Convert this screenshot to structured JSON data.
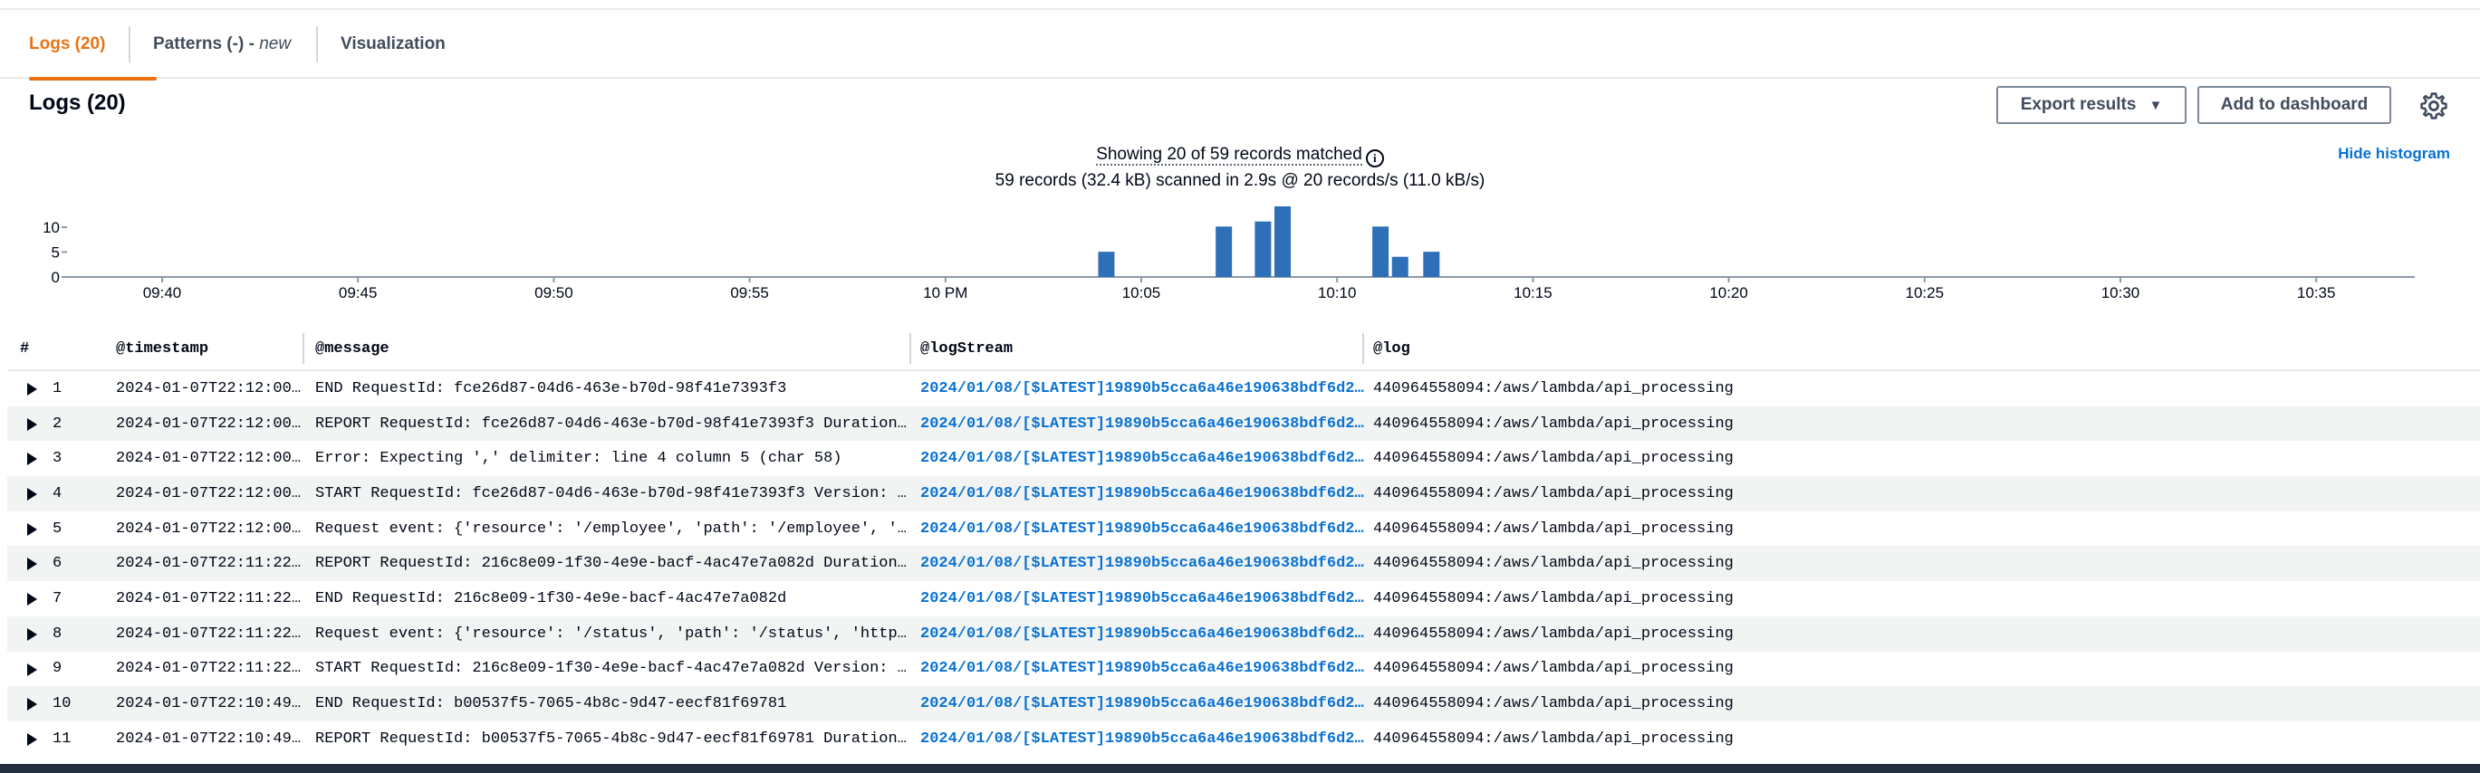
{
  "tabs": [
    {
      "label": "Logs (20)"
    },
    {
      "label": "Patterns (-) - ",
      "suffix": "new"
    },
    {
      "label": "Visualization"
    }
  ],
  "panel": {
    "title": "Logs (20)",
    "export_label": "Export results",
    "add_dashboard_label": "Add to dashboard"
  },
  "histogram": {
    "summary_line1": "Showing 20 of 59 records matched",
    "summary_line2": "59 records (32.4 kB) scanned in 2.9s @ 20 records/s (11.0 kB/s)",
    "hide_label": "Hide histogram"
  },
  "chart_data": {
    "type": "bar",
    "x_ticks": [
      "09:40",
      "09:45",
      "09:50",
      "09:55",
      "10 PM",
      "10:05",
      "10:10",
      "10:15",
      "10:20",
      "10:25",
      "10:30",
      "10:35"
    ],
    "y_ticks": [
      "0",
      "5",
      "10"
    ],
    "ylim": [
      0,
      14
    ],
    "bar_color": "#2f6fb7",
    "bars": [
      {
        "x_min": 23.9,
        "value": 5
      },
      {
        "x_min": 26.9,
        "value": 10
      },
      {
        "x_min": 27.9,
        "value": 11
      },
      {
        "x_min": 28.4,
        "value": 14
      },
      {
        "x_min": 30.9,
        "value": 10
      },
      {
        "x_min": 31.4,
        "value": 4
      },
      {
        "x_min": 32.2,
        "value": 5
      }
    ]
  },
  "table": {
    "headers": [
      "#",
      "@timestamp",
      "@message",
      "@logStream",
      "@log"
    ],
    "rows": [
      {
        "n": "1",
        "ts": "2024-01-07T22:12:00.…",
        "msg": "END RequestId: fce26d87-04d6-463e-b70d-98f41e7393f3",
        "stream": "2024/01/08/[$LATEST]19890b5cca6a46e190638bdf6d229…",
        "log": "440964558094:/aws/lambda/api_processing"
      },
      {
        "n": "2",
        "ts": "2024-01-07T22:12:00.…",
        "msg": "REPORT RequestId: fce26d87-04d6-463e-b70d-98f41e7393f3 Duration: 2.…",
        "stream": "2024/01/08/[$LATEST]19890b5cca6a46e190638bdf6d229…",
        "log": "440964558094:/aws/lambda/api_processing"
      },
      {
        "n": "3",
        "ts": "2024-01-07T22:12:00.…",
        "msg": "Error: Expecting ',' delimiter: line 4 column 5 (char 58)",
        "stream": "2024/01/08/[$LATEST]19890b5cca6a46e190638bdf6d229…",
        "log": "440964558094:/aws/lambda/api_processing"
      },
      {
        "n": "4",
        "ts": "2024-01-07T22:12:00.…",
        "msg": "START RequestId: fce26d87-04d6-463e-b70d-98f41e7393f3 Version: $LAT…",
        "stream": "2024/01/08/[$LATEST]19890b5cca6a46e190638bdf6d229…",
        "log": "440964558094:/aws/lambda/api_processing"
      },
      {
        "n": "5",
        "ts": "2024-01-07T22:12:00.…",
        "msg": "Request event: {'resource': '/employee', 'path': '/employee', 'http…",
        "stream": "2024/01/08/[$LATEST]19890b5cca6a46e190638bdf6d229…",
        "log": "440964558094:/aws/lambda/api_processing"
      },
      {
        "n": "6",
        "ts": "2024-01-07T22:11:22.…",
        "msg": "REPORT RequestId: 216c8e09-1f30-4e9e-bacf-4ac47e7a082d Duration: 2.…",
        "stream": "2024/01/08/[$LATEST]19890b5cca6a46e190638bdf6d229…",
        "log": "440964558094:/aws/lambda/api_processing"
      },
      {
        "n": "7",
        "ts": "2024-01-07T22:11:22.…",
        "msg": "END RequestId: 216c8e09-1f30-4e9e-bacf-4ac47e7a082d",
        "stream": "2024/01/08/[$LATEST]19890b5cca6a46e190638bdf6d229…",
        "log": "440964558094:/aws/lambda/api_processing"
      },
      {
        "n": "8",
        "ts": "2024-01-07T22:11:22.…",
        "msg": "Request event: {'resource': '/status', 'path': '/status', 'httpMeth…",
        "stream": "2024/01/08/[$LATEST]19890b5cca6a46e190638bdf6d229…",
        "log": "440964558094:/aws/lambda/api_processing"
      },
      {
        "n": "9",
        "ts": "2024-01-07T22:11:22.…",
        "msg": "START RequestId: 216c8e09-1f30-4e9e-bacf-4ac47e7a082d Version: $LAT…",
        "stream": "2024/01/08/[$LATEST]19890b5cca6a46e190638bdf6d229…",
        "log": "440964558094:/aws/lambda/api_processing"
      },
      {
        "n": "10",
        "ts": "2024-01-07T22:10:49.…",
        "msg": "END RequestId: b00537f5-7065-4b8c-9d47-eecf81f69781",
        "stream": "2024/01/08/[$LATEST]19890b5cca6a46e190638bdf6d229…",
        "log": "440964558094:/aws/lambda/api_processing"
      },
      {
        "n": "11",
        "ts": "2024-01-07T22:10:49.…",
        "msg": "REPORT RequestId: b00537f5-7065-4b8c-9d47-eecf81f69781 Duration: 2.…",
        "stream": "2024/01/08/[$LATEST]19890b5cca6a46e190638bdf6d229…",
        "log": "440964558094:/aws/lambda/api_processing"
      }
    ]
  }
}
